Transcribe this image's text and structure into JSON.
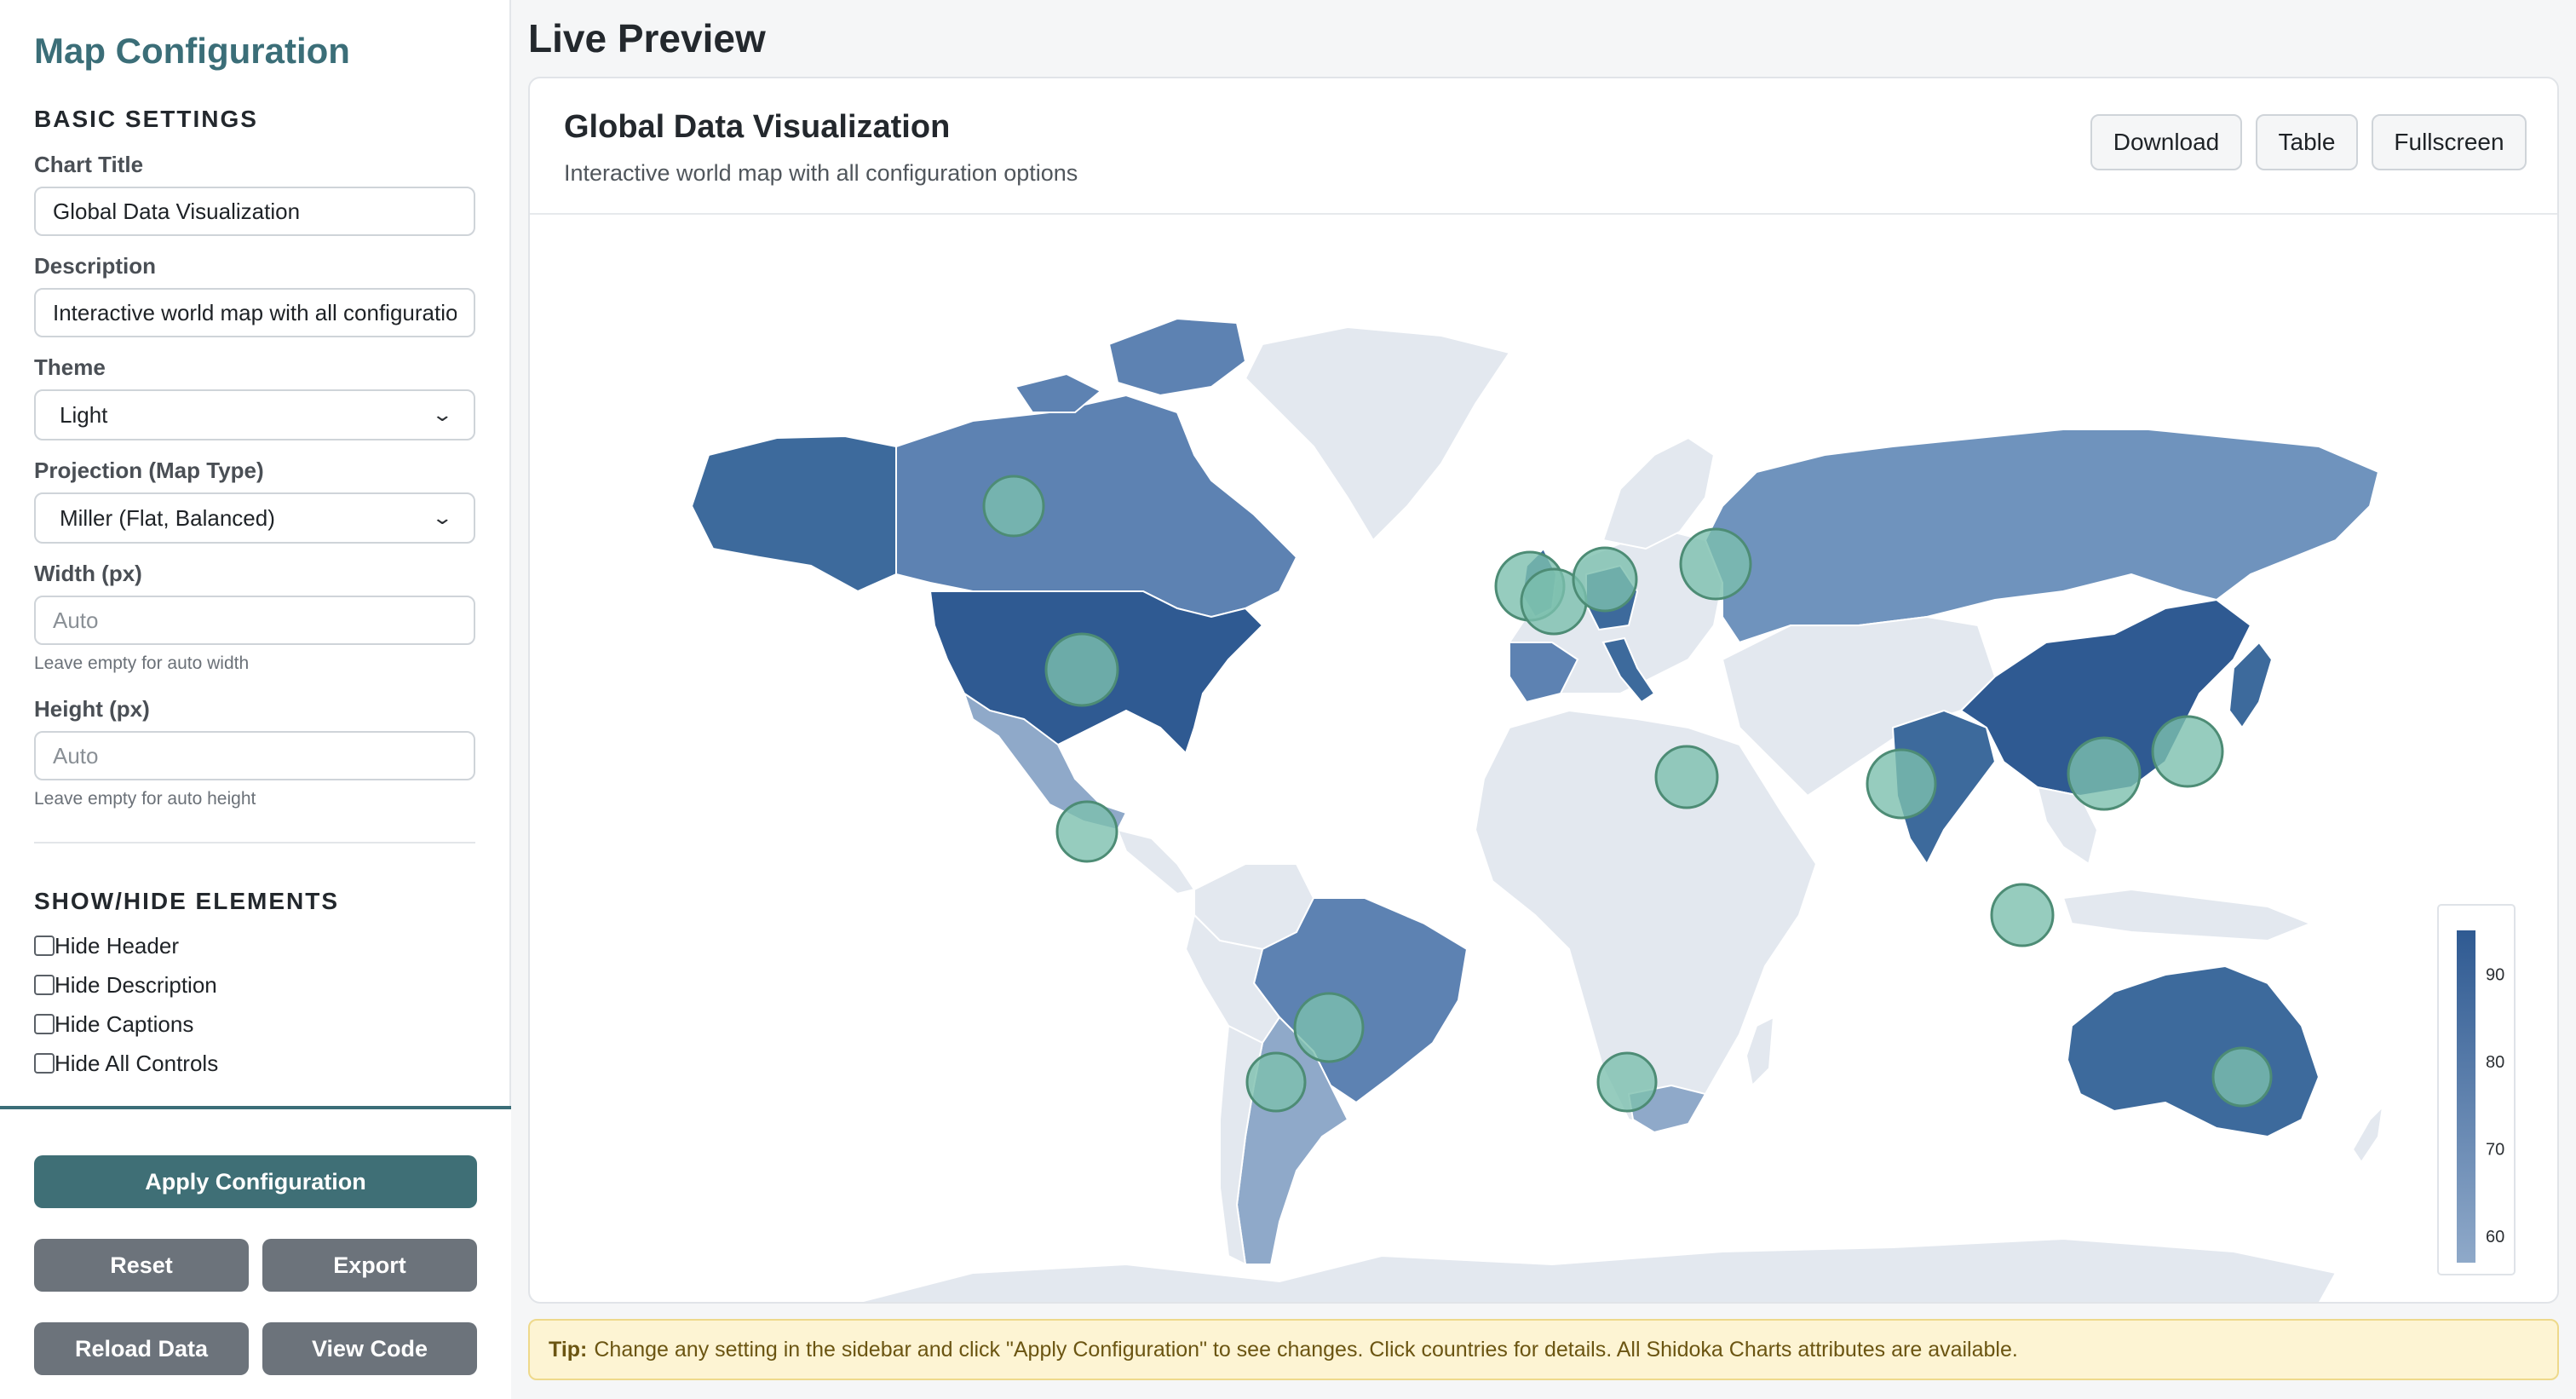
{
  "sidebar": {
    "title": "Map Configuration",
    "basic_heading": "BASIC SETTINGS",
    "chart_title_label": "Chart Title",
    "chart_title_value": "Global Data Visualization",
    "description_label": "Description",
    "description_value": "Interactive world map with all configuration options",
    "theme_label": "Theme",
    "theme_value": "Light",
    "projection_label": "Projection (Map Type)",
    "projection_value": "Miller (Flat, Balanced)",
    "width_label": "Width (px)",
    "width_placeholder": "Auto",
    "width_hint": "Leave empty for auto width",
    "height_label": "Height (px)",
    "height_placeholder": "Auto",
    "height_hint": "Leave empty for auto height",
    "show_hide_heading": "SHOW/HIDE ELEMENTS",
    "checkboxes": [
      "Hide Header",
      "Hide Description",
      "Hide Captions",
      "Hide All Controls"
    ],
    "apply_label": "Apply Configuration",
    "reset_label": "Reset",
    "export_label": "Export",
    "reload_label": "Reload Data",
    "view_code_label": "View Code"
  },
  "main": {
    "title": "Live Preview",
    "chart_title": "Global Data Visualization",
    "chart_description": "Interactive world map with all configuration options",
    "download_label": "Download",
    "table_label": "Table",
    "fullscreen_label": "Fullscreen",
    "tip_label": "Tip:",
    "tip_text": "Change any setting in the sidebar and click \"Apply Configuration\" to see changes. Click countries for details. All Shidoka Charts attributes are available."
  },
  "colors": {
    "accent": "#3f6f76",
    "land_base": "#e3e8ef",
    "scale_low": "#8fa9c9",
    "scale_high": "#2f5a92",
    "bubble": "#7cbfae"
  },
  "legend": {
    "ticks": [
      90,
      80,
      70,
      60
    ],
    "min": 57,
    "max": 95
  }
}
